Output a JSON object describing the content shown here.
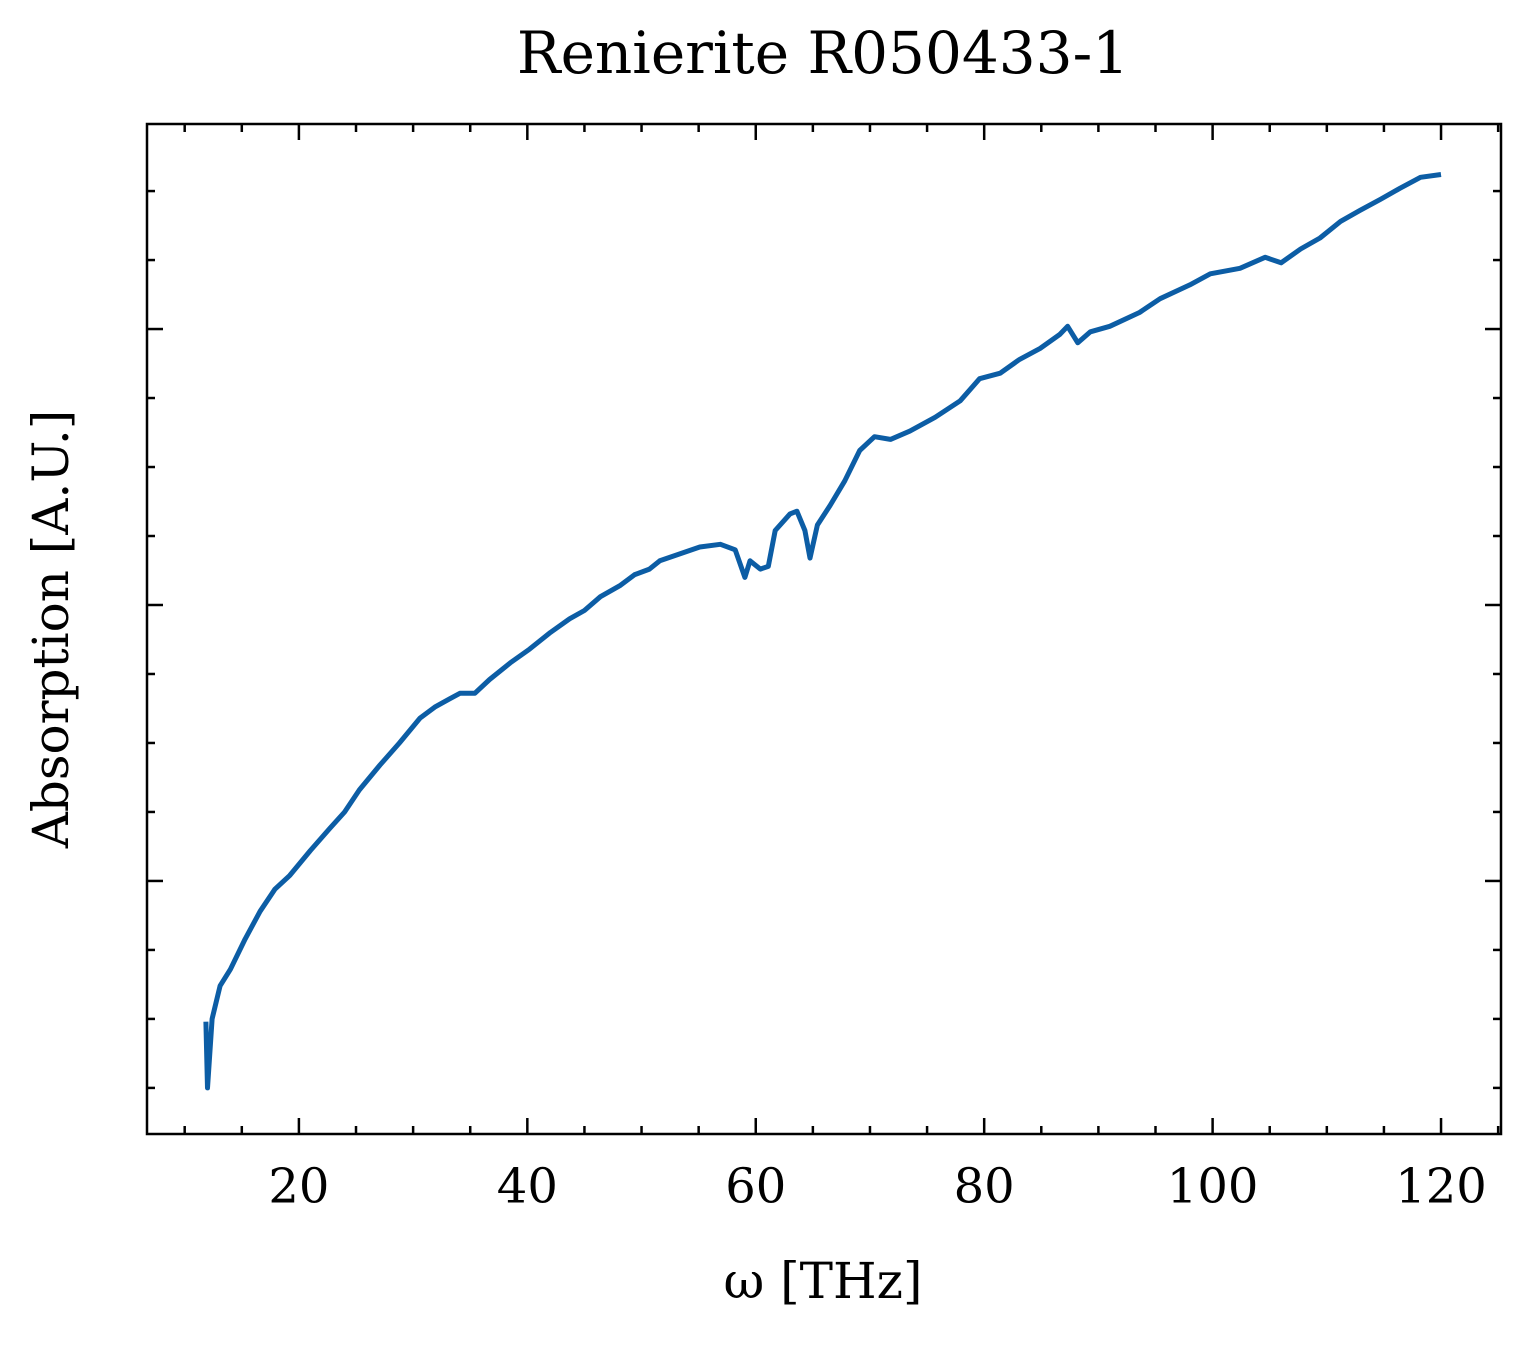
{
  "chart_data": {
    "type": "line",
    "title": "Renierite R050433-1",
    "x_label": "ω [THz]",
    "y_label": "Absorption [A.U.]",
    "x": [
      11.86,
      12.0,
      12.4,
      13.1,
      14,
      15.3,
      16.6,
      17.9,
      19.2,
      21,
      22.7,
      24,
      25.3,
      27.1,
      28.8,
      30.6,
      31.9,
      33.2,
      34.1,
      35.4,
      36.7,
      38.5,
      40.2,
      42,
      43.7,
      45,
      46.4,
      48.1,
      49.4,
      50.7,
      51.6,
      55.1,
      56.9,
      58.2,
      59.05,
      59.5,
      60.4,
      61.1,
      61.7,
      63,
      63.6,
      64.3,
      64.75,
      65.4,
      66.5,
      67.8,
      69.1,
      70.4,
      71.8,
      73.5,
      75.7,
      77.9,
      79.6,
      81.4,
      83.1,
      84.9,
      86.6,
      87.3,
      88.2,
      89.3,
      91,
      93.6,
      95.4,
      98,
      99.8,
      102.4,
      104.6,
      106,
      107.7,
      109.4,
      111.2,
      112.9,
      114.7,
      116.4,
      118.2,
      120
    ],
    "series": [
      {
        "name": "Renierite R050433-1",
        "color": "#0c5da5",
        "values": [
          0.49,
          0.25,
          0.5,
          0.62,
          0.68,
          0.79,
          0.89,
          0.97,
          1.02,
          1.11,
          1.19,
          1.25,
          1.33,
          1.42,
          1.5,
          1.59,
          1.63,
          1.66,
          1.68,
          1.68,
          1.73,
          1.79,
          1.84,
          1.9,
          1.95,
          1.98,
          2.03,
          2.07,
          2.11,
          2.13,
          2.16,
          2.21,
          2.22,
          2.2,
          2.1,
          2.16,
          2.13,
          2.14,
          2.27,
          2.33,
          2.34,
          2.27,
          2.17,
          2.29,
          2.36,
          2.45,
          2.56,
          2.61,
          2.6,
          2.63,
          2.68,
          2.74,
          2.82,
          2.84,
          2.89,
          2.93,
          2.98,
          3.01,
          2.95,
          2.99,
          3.01,
          3.06,
          3.11,
          3.16,
          3.2,
          3.22,
          3.26,
          3.24,
          3.29,
          3.33,
          3.39,
          3.43,
          3.47,
          3.51,
          3.55,
          3.56
        ]
      }
    ],
    "xlim": [
      6.7,
      125.25
    ],
    "ylim": [
      0.083,
      3.743
    ],
    "xticks": [
      20,
      40,
      60,
      80,
      100,
      120
    ],
    "xminorticks": [
      10,
      15,
      25,
      30,
      35,
      45,
      50,
      55,
      65,
      70,
      75,
      85,
      90,
      95,
      105,
      110,
      115,
      125
    ],
    "yticks": [
      1,
      2,
      3
    ],
    "yminorticks": [
      0.25,
      0.5,
      0.75,
      1.25,
      1.5,
      1.75,
      2.25,
      2.5,
      2.75,
      3.25,
      3.5
    ],
    "ytick_labels": false,
    "mirror_ticks": true,
    "ticks_inward": true,
    "grid": false
  }
}
